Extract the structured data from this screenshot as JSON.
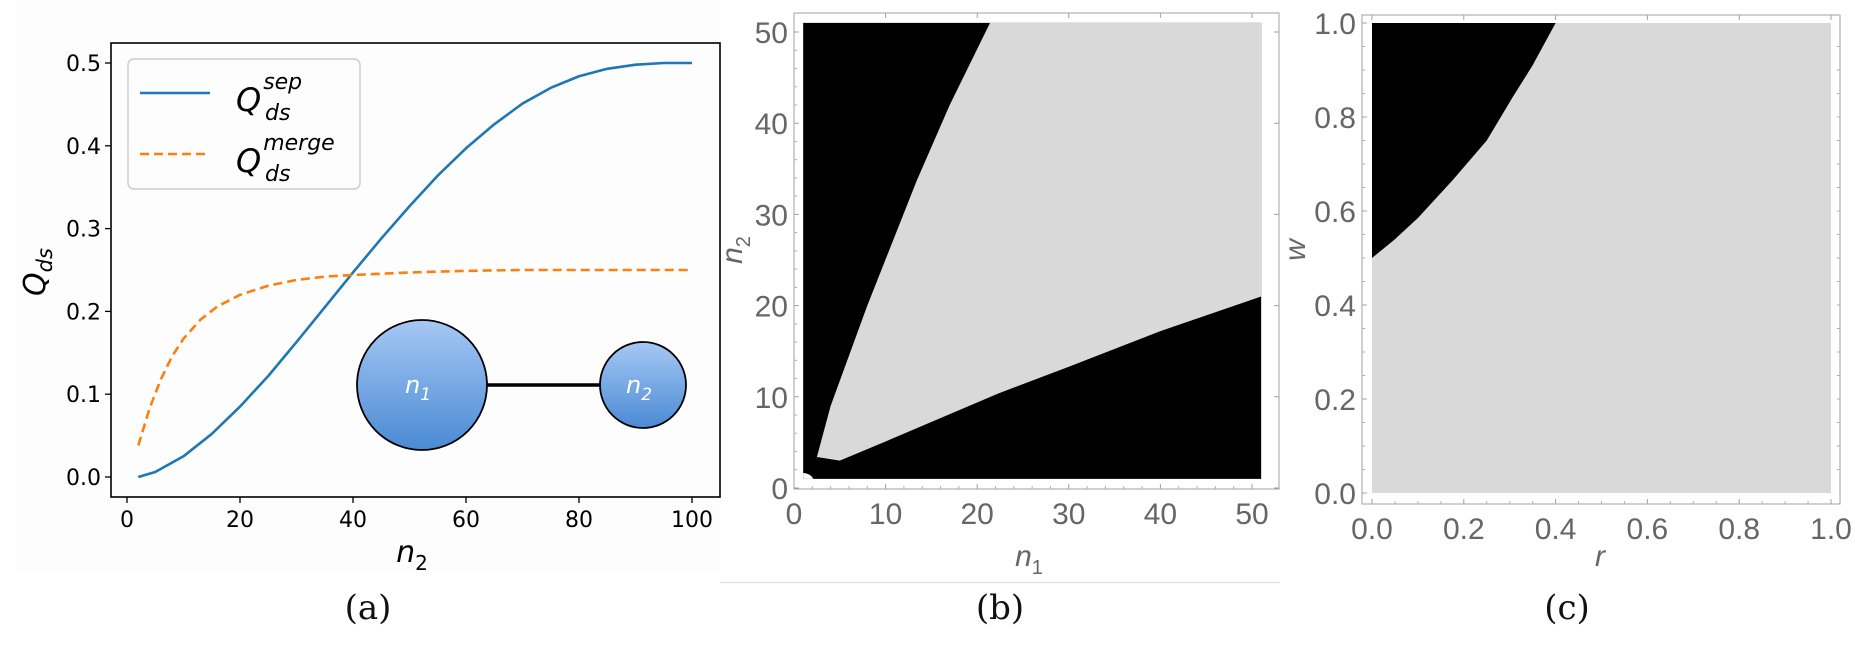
{
  "figure": {
    "captions": [
      "(a)",
      "(b)",
      "(c)"
    ]
  },
  "chart_data": [
    {
      "id": "a",
      "type": "line",
      "title": "",
      "xlabel": "n_2",
      "ylabel": "Q_ds",
      "xlim": [
        -3,
        105
      ],
      "ylim": [
        -0.022,
        0.522
      ],
      "xticks": [
        0,
        20,
        40,
        60,
        80,
        100
      ],
      "xtick_labels": [
        "0",
        "20",
        "40",
        "60",
        "80",
        "100"
      ],
      "yticks": [
        0.0,
        0.1,
        0.2,
        0.3,
        0.4,
        0.5
      ],
      "ytick_labels": [
        "0.0",
        "0.1",
        "0.2",
        "0.3",
        "0.4",
        "0.5"
      ],
      "grid": false,
      "legend_position": "upper left",
      "series": [
        {
          "name": "Q_ds^sep",
          "legend_main": "Q",
          "legend_sup": "sep",
          "legend_sub": "ds",
          "color": "#1f77b4",
          "style": "solid",
          "x": [
            2,
            5,
            10,
            15,
            20,
            25,
            30,
            35,
            40,
            45,
            50,
            55,
            60,
            65,
            70,
            75,
            80,
            85,
            90,
            95,
            100
          ],
          "values": [
            0.0,
            0.006,
            0.025,
            0.052,
            0.085,
            0.122,
            0.163,
            0.205,
            0.247,
            0.288,
            0.327,
            0.364,
            0.397,
            0.426,
            0.451,
            0.47,
            0.484,
            0.493,
            0.498,
            0.5,
            0.5
          ]
        },
        {
          "name": "Q_ds^merge",
          "legend_main": "Q",
          "legend_sup": "merge",
          "legend_sub": "ds",
          "color": "#ff7f0e",
          "style": "dashed",
          "x": [
            2,
            4,
            6,
            8,
            10,
            13,
            16,
            20,
            25,
            30,
            35,
            40,
            50,
            60,
            70,
            80,
            90,
            100
          ],
          "values": [
            0.038,
            0.083,
            0.118,
            0.146,
            0.167,
            0.19,
            0.206,
            0.22,
            0.231,
            0.238,
            0.242,
            0.244,
            0.247,
            0.249,
            0.25,
            0.25,
            0.25,
            0.25
          ]
        }
      ],
      "inset_diagram": {
        "nodes": [
          {
            "label": "n",
            "sub": "1",
            "color_top": "#a6c8f4",
            "color_bottom": "#4a8ad4"
          },
          {
            "label": "n",
            "sub": "2",
            "color_top": "#a6c8f4",
            "color_bottom": "#4a8ad4"
          }
        ],
        "edge": "n1-n2"
      }
    },
    {
      "id": "b",
      "type": "heatmap",
      "title": "",
      "xlabel": "n_1",
      "ylabel": "n_2",
      "xlim": [
        0,
        52
      ],
      "ylim": [
        0,
        52
      ],
      "xticks": [
        0,
        10,
        20,
        30,
        40,
        50
      ],
      "xtick_labels": [
        "0",
        "10",
        "20",
        "30",
        "40",
        "50"
      ],
      "yticks": [
        0,
        10,
        20,
        30,
        40,
        50
      ],
      "ytick_labels": [
        "0",
        "10",
        "20",
        "30",
        "40",
        "50"
      ],
      "grid": false,
      "regions": {
        "black": "#000000",
        "gray": "#d9d9d9"
      },
      "data_extent": {
        "n1": [
          1,
          51
        ],
        "n2": [
          1,
          51
        ]
      },
      "gray_region_boundary": {
        "upper": {
          "n1": [
            2.5,
            4,
            8,
            13.4,
            17,
            21.4
          ],
          "n2": [
            3.4,
            9,
            20,
            33.7,
            42,
            51
          ]
        },
        "lower": {
          "n1": [
            2.5,
            5,
            10,
            22.4,
            30,
            40,
            51
          ],
          "n2": [
            3.4,
            3.0,
            5.1,
            10.4,
            13.3,
            17.2,
            21
          ]
        }
      }
    },
    {
      "id": "c",
      "type": "heatmap",
      "title": "",
      "xlabel": "r",
      "ylabel": "w",
      "xlim": [
        -0.02,
        1.02
      ],
      "ylim": [
        -0.02,
        1.02
      ],
      "xticks": [
        0.0,
        0.2,
        0.4,
        0.6,
        0.8,
        1.0
      ],
      "xtick_labels": [
        "0.0",
        "0.2",
        "0.4",
        "0.6",
        "0.8",
        "1.0"
      ],
      "yticks": [
        0.0,
        0.2,
        0.4,
        0.6,
        0.8,
        1.0
      ],
      "ytick_labels": [
        "0.0",
        "0.2",
        "0.4",
        "0.6",
        "0.8",
        "1.0"
      ],
      "grid": false,
      "regions": {
        "black": "#000000",
        "gray": "#d9d9d9"
      },
      "black_region_boundary": {
        "r": [
          0.0,
          0.05,
          0.1,
          0.176,
          0.25,
          0.307,
          0.35,
          0.4
        ],
        "w": [
          0.5,
          0.54,
          0.585,
          0.666,
          0.75,
          0.843,
          0.91,
          1.0
        ]
      }
    }
  ]
}
